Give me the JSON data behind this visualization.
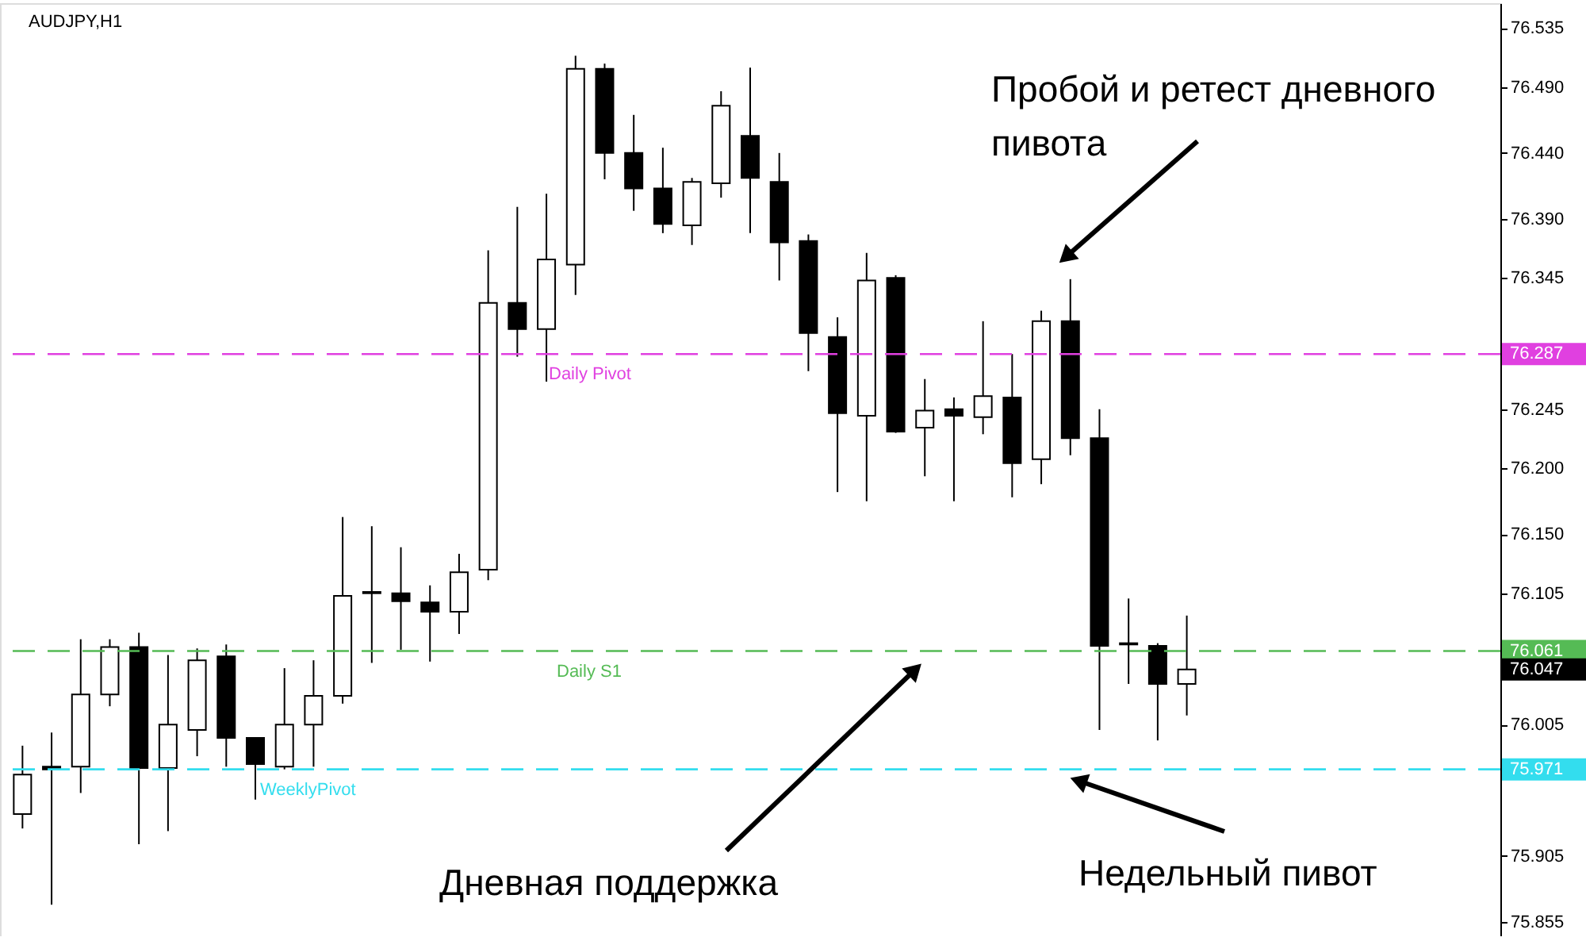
{
  "chart_data": {
    "type": "candlestick",
    "title": "AUDJPY,H1",
    "categories": [
      null,
      null,
      null,
      null,
      null,
      null,
      null,
      null,
      null,
      null,
      null,
      null,
      null,
      null,
      null,
      null,
      null,
      null,
      null,
      null,
      null,
      null,
      null,
      null,
      null,
      null,
      null,
      null,
      null,
      null,
      null,
      null,
      null,
      null,
      null,
      null,
      null,
      null,
      null,
      null,
      null,
      null,
      null,
      null,
      null,
      null,
      null,
      null,
      null,
      null,
      null
    ],
    "ohlc": [
      [
        75.937,
        75.989,
        75.926,
        75.967
      ],
      [
        75.973,
        75.999,
        75.868,
        75.971
      ],
      [
        75.973,
        76.07,
        75.953,
        76.028
      ],
      [
        76.028,
        76.07,
        76.019,
        76.064
      ],
      [
        76.064,
        76.075,
        75.914,
        75.972
      ],
      [
        75.972,
        76.058,
        75.924,
        76.005
      ],
      [
        76.001,
        76.063,
        75.981,
        76.054
      ],
      [
        76.057,
        76.066,
        75.973,
        75.995
      ],
      [
        75.995,
        75.995,
        75.948,
        75.975
      ],
      [
        75.973,
        76.048,
        75.971,
        76.005
      ],
      [
        76.005,
        76.054,
        75.973,
        76.027
      ],
      [
        76.027,
        76.163,
        76.021,
        76.103
      ],
      [
        76.106,
        76.156,
        76.052,
        76.105
      ],
      [
        76.105,
        76.14,
        76.062,
        76.099
      ],
      [
        76.098,
        76.111,
        76.053,
        76.091
      ],
      [
        76.091,
        76.135,
        76.074,
        76.121
      ],
      [
        76.123,
        76.366,
        76.115,
        76.326
      ],
      [
        76.326,
        76.399,
        76.285,
        76.306
      ],
      [
        76.306,
        76.409,
        76.266,
        76.359
      ],
      [
        76.355,
        76.514,
        76.332,
        76.504
      ],
      [
        76.504,
        76.508,
        76.42,
        76.44
      ],
      [
        76.44,
        76.469,
        76.396,
        76.413
      ],
      [
        76.413,
        76.444,
        76.379,
        76.386
      ],
      [
        76.385,
        76.421,
        76.37,
        76.418
      ],
      [
        76.417,
        76.487,
        76.406,
        76.476
      ],
      [
        76.453,
        76.505,
        76.379,
        76.421
      ],
      [
        76.418,
        76.44,
        76.343,
        76.372
      ],
      [
        76.373,
        76.378,
        76.274,
        76.303
      ],
      [
        76.3,
        76.315,
        76.182,
        76.242
      ],
      [
        76.24,
        76.364,
        76.175,
        76.343
      ],
      [
        76.345,
        76.347,
        76.227,
        76.228
      ],
      [
        76.231,
        76.268,
        76.194,
        76.244
      ],
      [
        76.245,
        76.254,
        76.175,
        76.24
      ],
      [
        76.239,
        76.312,
        76.226,
        76.255
      ],
      [
        76.254,
        76.287,
        76.178,
        76.204
      ],
      [
        76.207,
        76.32,
        76.188,
        76.312
      ],
      [
        76.312,
        76.344,
        76.21,
        76.223
      ],
      [
        76.223,
        76.245,
        76.001,
        76.065
      ],
      [
        76.067,
        76.101,
        76.036,
        76.066
      ],
      [
        76.065,
        76.067,
        75.993,
        76.036
      ],
      [
        76.036,
        76.088,
        76.012,
        76.047
      ],
      null,
      null,
      null,
      null,
      null,
      null,
      null,
      null,
      null,
      null
    ],
    "ylim": [
      75.844,
      76.554
    ],
    "yticks": [
      75.855,
      75.905,
      76.005,
      76.105,
      {
        "value": 76.15,
        "label": "76.150"
      },
      {
        "value": 76.2,
        "label": "76.200"
      },
      76.245,
      76.345,
      {
        "value": 76.39,
        "label": "76.390"
      },
      {
        "value": 76.44,
        "label": "76.440"
      },
      {
        "value": 76.49,
        "label": "76.490"
      },
      76.535
    ],
    "tick_labels": "y",
    "grid": false,
    "ref_lines": [
      {
        "axis": "y",
        "value": 76.287,
        "label": "Daily Pivot",
        "color": "#e040e0",
        "line_style": "dashed"
      },
      {
        "axis": "y",
        "value": 76.061,
        "label": "Daily S1",
        "color": "#55bb55",
        "line_style": "dashed"
      },
      {
        "axis": "y",
        "value": 75.971,
        "label": "WeeklyPivot",
        "color": "#33ddee",
        "line_style": "dashed"
      }
    ],
    "annotations": [
      "Пробой и ретест дневного пивота",
      "Дневная поддержка",
      "Недельный пивот",
      "76.287",
      "76.061",
      "75.971",
      "76.047"
    ]
  }
}
